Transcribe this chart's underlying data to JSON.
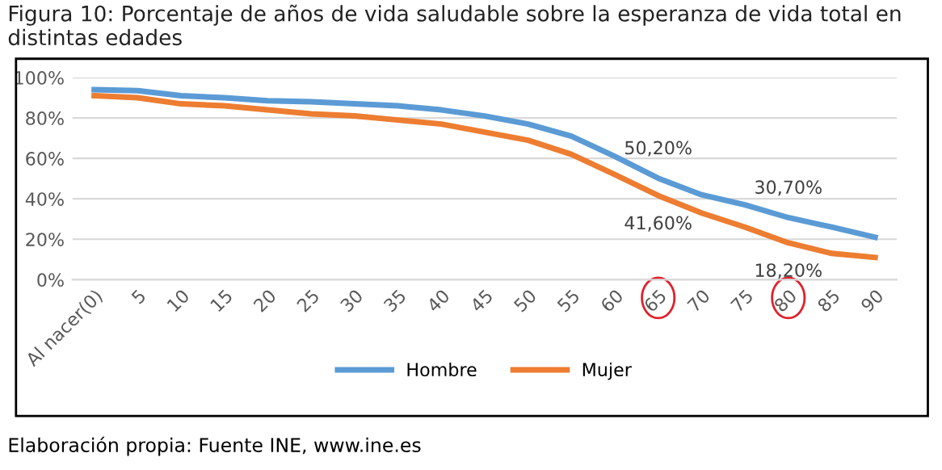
{
  "chart_data": {
    "type": "line",
    "title": "Figura 10: Porcentaje de años de vida saludable sobre la esperanza de vida total en distintas edades",
    "categories": [
      "Al nacer(0)",
      "5",
      "10",
      "15",
      "20",
      "25",
      "30",
      "35",
      "40",
      "45",
      "50",
      "55",
      "60",
      "65",
      "70",
      "75",
      "80",
      "85",
      "90"
    ],
    "series": [
      {
        "name": "Hombre",
        "color": "#5b9bd5",
        "values": [
          94,
          93.5,
          91,
          90,
          88.5,
          88,
          87,
          86,
          84,
          81,
          77,
          71,
          61,
          50.2,
          42,
          37,
          30.7,
          26,
          21
        ],
        "value_labels": [
          null,
          null,
          null,
          null,
          null,
          null,
          null,
          null,
          null,
          null,
          null,
          null,
          null,
          "50,20%",
          null,
          null,
          "30,70%",
          null,
          null
        ]
      },
      {
        "name": "Mujer",
        "color": "#ed7d31",
        "values": [
          91,
          90,
          87,
          86,
          84,
          82,
          81,
          79,
          77,
          73,
          69,
          62,
          52,
          41.6,
          33,
          26,
          18.2,
          13,
          11
        ],
        "value_labels": [
          null,
          null,
          null,
          null,
          null,
          null,
          null,
          null,
          null,
          null,
          null,
          null,
          null,
          "41,60%",
          null,
          null,
          "18,20%",
          null,
          null
        ]
      }
    ],
    "ylim": [
      0,
      100
    ],
    "yticks": [
      {
        "value": 0,
        "label": "0%"
      },
      {
        "value": 20,
        "label": "20%"
      },
      {
        "value": 40,
        "label": "40%"
      },
      {
        "value": 60,
        "label": "60%"
      },
      {
        "value": 80,
        "label": "80%"
      },
      {
        "value": 100,
        "label": "100%"
      }
    ],
    "grid": "y",
    "legend": "bottom",
    "marker": "none",
    "line_style": "solid",
    "annotations": [
      "Elaboración propia: Fuente INE, www.ine.es"
    ]
  }
}
